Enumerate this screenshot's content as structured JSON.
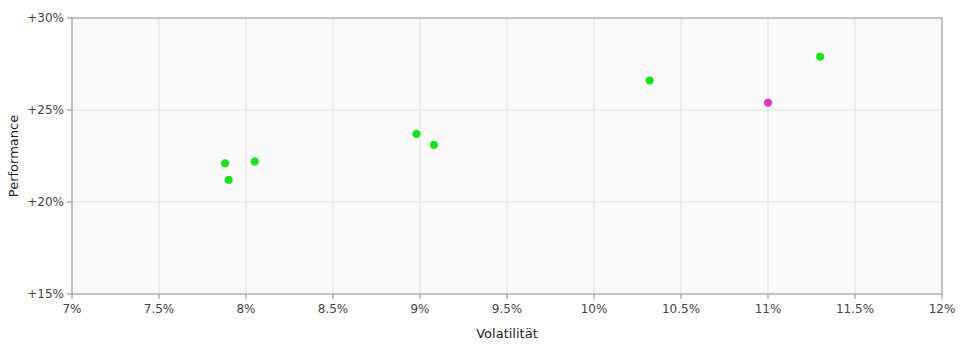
{
  "chart_data": {
    "type": "scatter",
    "xlabel": "Volatilität",
    "ylabel": "Performance",
    "xlim": [
      0.07,
      0.12
    ],
    "ylim": [
      0.15,
      0.3
    ],
    "xticks": [
      {
        "value": 0.07,
        "label": "7%"
      },
      {
        "value": 0.075,
        "label": "7.5%"
      },
      {
        "value": 0.08,
        "label": "8%"
      },
      {
        "value": 0.085,
        "label": "8.5%"
      },
      {
        "value": 0.09,
        "label": "9%"
      },
      {
        "value": 0.095,
        "label": "9.5%"
      },
      {
        "value": 0.1,
        "label": "10%"
      },
      {
        "value": 0.105,
        "label": "10.5%"
      },
      {
        "value": 0.11,
        "label": "11%"
      },
      {
        "value": 0.115,
        "label": "11.5%"
      },
      {
        "value": 0.12,
        "label": "12%"
      }
    ],
    "yticks": [
      {
        "value": 0.15,
        "label": "+15%"
      },
      {
        "value": 0.2,
        "label": "+20%"
      },
      {
        "value": 0.25,
        "label": "+25%"
      },
      {
        "value": 0.3,
        "label": "+30%"
      }
    ],
    "grid": true,
    "series": [
      {
        "color": "#00dd00",
        "x": [
          0.0788,
          0.0805,
          0.079,
          0.0898,
          0.0908,
          0.1032,
          0.113
        ],
        "values": [
          0.221,
          0.222,
          0.212,
          0.237,
          0.231,
          0.266,
          0.279
        ]
      },
      {
        "color": "#cc22cc",
        "x": [
          0.11
        ],
        "values": [
          0.254
        ]
      }
    ]
  }
}
